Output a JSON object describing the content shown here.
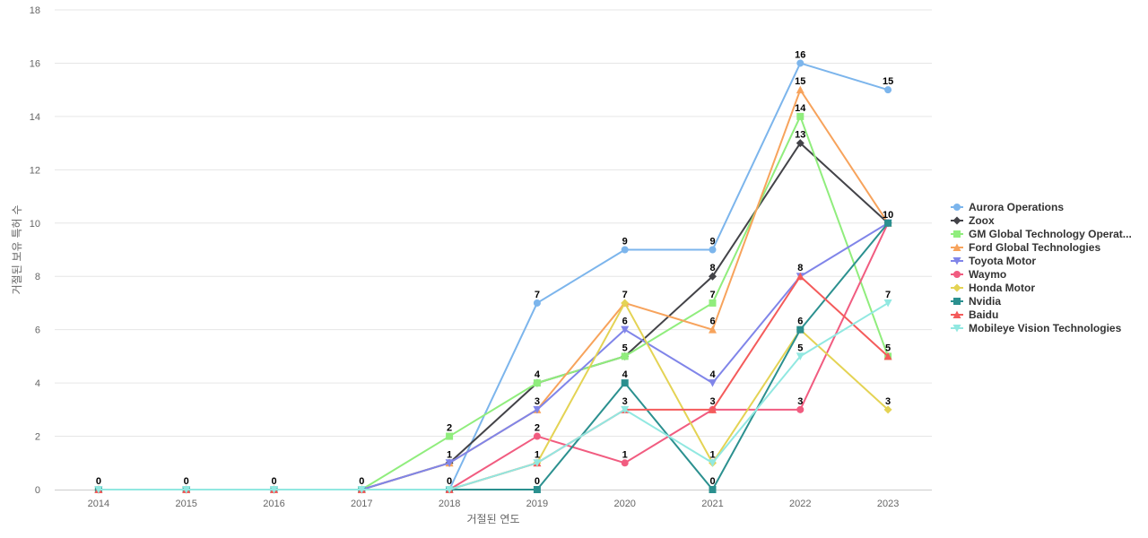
{
  "chart_data": {
    "type": "line",
    "title": "",
    "xlabel": "거절된 연도",
    "ylabel": "거절된 보유 특허 수",
    "x": [
      "2014",
      "2015",
      "2016",
      "2017",
      "2018",
      "2019",
      "2020",
      "2021",
      "2022",
      "2023"
    ],
    "ylim": [
      0,
      18
    ],
    "yticks": [
      0,
      2,
      4,
      6,
      8,
      10,
      12,
      14,
      16,
      18
    ],
    "grid": true,
    "legend_position": "right",
    "series": [
      {
        "name": "Aurora Operations",
        "color": "#7cb5ec",
        "marker": "circle",
        "values": [
          0,
          0,
          0,
          0,
          0,
          7,
          9,
          9,
          16,
          15
        ]
      },
      {
        "name": "Zoox",
        "color": "#434348",
        "marker": "diamond",
        "values": [
          0,
          0,
          0,
          0,
          1,
          4,
          5,
          8,
          13,
          10
        ]
      },
      {
        "name": "GM Global Technology Operat...",
        "color": "#90ed7d",
        "marker": "square",
        "values": [
          0,
          0,
          0,
          0,
          2,
          4,
          5,
          7,
          14,
          5
        ]
      },
      {
        "name": "Ford Global Technologies",
        "color": "#f7a35c",
        "marker": "triangle",
        "values": [
          0,
          0,
          0,
          0,
          1,
          3,
          7,
          6,
          15,
          10
        ]
      },
      {
        "name": "Toyota Motor",
        "color": "#8085e9",
        "marker": "triangle-down",
        "values": [
          0,
          0,
          0,
          0,
          1,
          3,
          6,
          4,
          8,
          10
        ]
      },
      {
        "name": "Waymo",
        "color": "#f15c80",
        "marker": "circle",
        "values": [
          0,
          0,
          0,
          0,
          0,
          2,
          1,
          3,
          3,
          10
        ]
      },
      {
        "name": "Honda Motor",
        "color": "#e4d354",
        "marker": "diamond",
        "values": [
          0,
          0,
          0,
          0,
          0,
          1,
          7,
          1,
          6,
          3
        ]
      },
      {
        "name": "Nvidia",
        "color": "#2b908f",
        "marker": "square",
        "values": [
          0,
          0,
          0,
          0,
          0,
          0,
          4,
          0,
          6,
          10
        ]
      },
      {
        "name": "Baidu",
        "color": "#f45b5b",
        "marker": "triangle",
        "values": [
          0,
          0,
          0,
          0,
          0,
          1,
          3,
          3,
          8,
          5
        ]
      },
      {
        "name": "Mobileye Vision Technologies",
        "color": "#91e8e1",
        "marker": "triangle-down",
        "values": [
          0,
          0,
          0,
          0,
          0,
          1,
          3,
          1,
          5,
          7
        ]
      }
    ],
    "data_labels": [
      {
        "x": "2014",
        "y": 0,
        "text": "0"
      },
      {
        "x": "2015",
        "y": 0,
        "text": "0"
      },
      {
        "x": "2016",
        "y": 0,
        "text": "0"
      },
      {
        "x": "2017",
        "y": 0,
        "text": "0"
      },
      {
        "x": "2018",
        "y": 0,
        "text": "0"
      },
      {
        "x": "2018",
        "y": 1,
        "text": "1"
      },
      {
        "x": "2018",
        "y": 2,
        "text": "2"
      },
      {
        "x": "2019",
        "y": 0,
        "text": "0"
      },
      {
        "x": "2019",
        "y": 1,
        "text": "1"
      },
      {
        "x": "2019",
        "y": 2,
        "text": "2"
      },
      {
        "x": "2019",
        "y": 3,
        "text": "3"
      },
      {
        "x": "2019",
        "y": 4,
        "text": "4"
      },
      {
        "x": "2019",
        "y": 7,
        "text": "7"
      },
      {
        "x": "2020",
        "y": 1,
        "text": "1"
      },
      {
        "x": "2020",
        "y": 3,
        "text": "3"
      },
      {
        "x": "2020",
        "y": 4,
        "text": "4"
      },
      {
        "x": "2020",
        "y": 5,
        "text": "5"
      },
      {
        "x": "2020",
        "y": 6,
        "text": "6"
      },
      {
        "x": "2020",
        "y": 7,
        "text": "7"
      },
      {
        "x": "2020",
        "y": 9,
        "text": "9"
      },
      {
        "x": "2021",
        "y": 0,
        "text": "0"
      },
      {
        "x": "2021",
        "y": 1,
        "text": "1"
      },
      {
        "x": "2021",
        "y": 3,
        "text": "3"
      },
      {
        "x": "2021",
        "y": 4,
        "text": "4"
      },
      {
        "x": "2021",
        "y": 6,
        "text": "6"
      },
      {
        "x": "2021",
        "y": 7,
        "text": "7"
      },
      {
        "x": "2021",
        "y": 8,
        "text": "8"
      },
      {
        "x": "2021",
        "y": 9,
        "text": "9"
      },
      {
        "x": "2022",
        "y": 3,
        "text": "3"
      },
      {
        "x": "2022",
        "y": 5,
        "text": "5"
      },
      {
        "x": "2022",
        "y": 6,
        "text": "6"
      },
      {
        "x": "2022",
        "y": 8,
        "text": "8"
      },
      {
        "x": "2022",
        "y": 13,
        "text": "13"
      },
      {
        "x": "2022",
        "y": 14,
        "text": "14"
      },
      {
        "x": "2022",
        "y": 15,
        "text": "15"
      },
      {
        "x": "2022",
        "y": 16,
        "text": "16"
      },
      {
        "x": "2023",
        "y": 3,
        "text": "3"
      },
      {
        "x": "2023",
        "y": 5,
        "text": "5"
      },
      {
        "x": "2023",
        "y": 7,
        "text": "7"
      },
      {
        "x": "2023",
        "y": 10,
        "text": "10"
      },
      {
        "x": "2023",
        "y": 15,
        "text": "15"
      }
    ]
  }
}
